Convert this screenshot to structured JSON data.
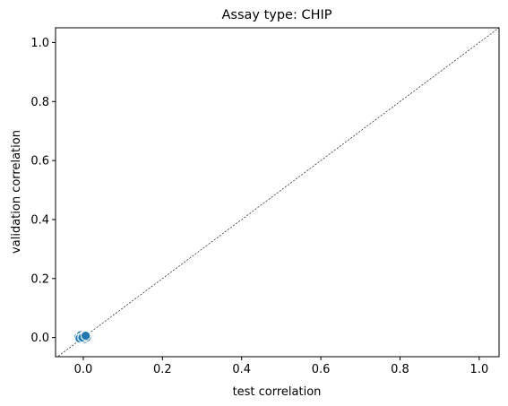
{
  "chart_data": {
    "type": "scatter",
    "title": "Assay type: CHIP",
    "xlabel": "test correlation",
    "ylabel": "validation correlation",
    "xlim": [
      -0.07,
      1.05
    ],
    "ylim": [
      -0.065,
      1.05
    ],
    "xticks": [
      0.0,
      0.2,
      0.4,
      0.6,
      0.8,
      1.0
    ],
    "yticks": [
      0.0,
      0.2,
      0.4,
      0.6,
      0.8,
      1.0
    ],
    "xtick_labels": [
      "0.0",
      "0.2",
      "0.4",
      "0.6",
      "0.8",
      "1.0"
    ],
    "ytick_labels": [
      "0.0",
      "0.2",
      "0.4",
      "0.6",
      "0.8",
      "1.0"
    ],
    "grid": false,
    "legend": "none",
    "reference_line": {
      "from": [
        -0.07,
        -0.07
      ],
      "to": [
        1.05,
        1.05
      ],
      "style": "dashed",
      "color": "#000000"
    },
    "series": [
      {
        "color": "#1f77b4",
        "x": [
          -0.012,
          -0.006,
          0.0,
          0.004,
          0.009,
          -0.009,
          -0.002,
          0.006
        ],
        "y": [
          0.002,
          0.008,
          0.004,
          -0.004,
          0.001,
          -0.003,
          0.0,
          0.006
        ]
      }
    ]
  }
}
